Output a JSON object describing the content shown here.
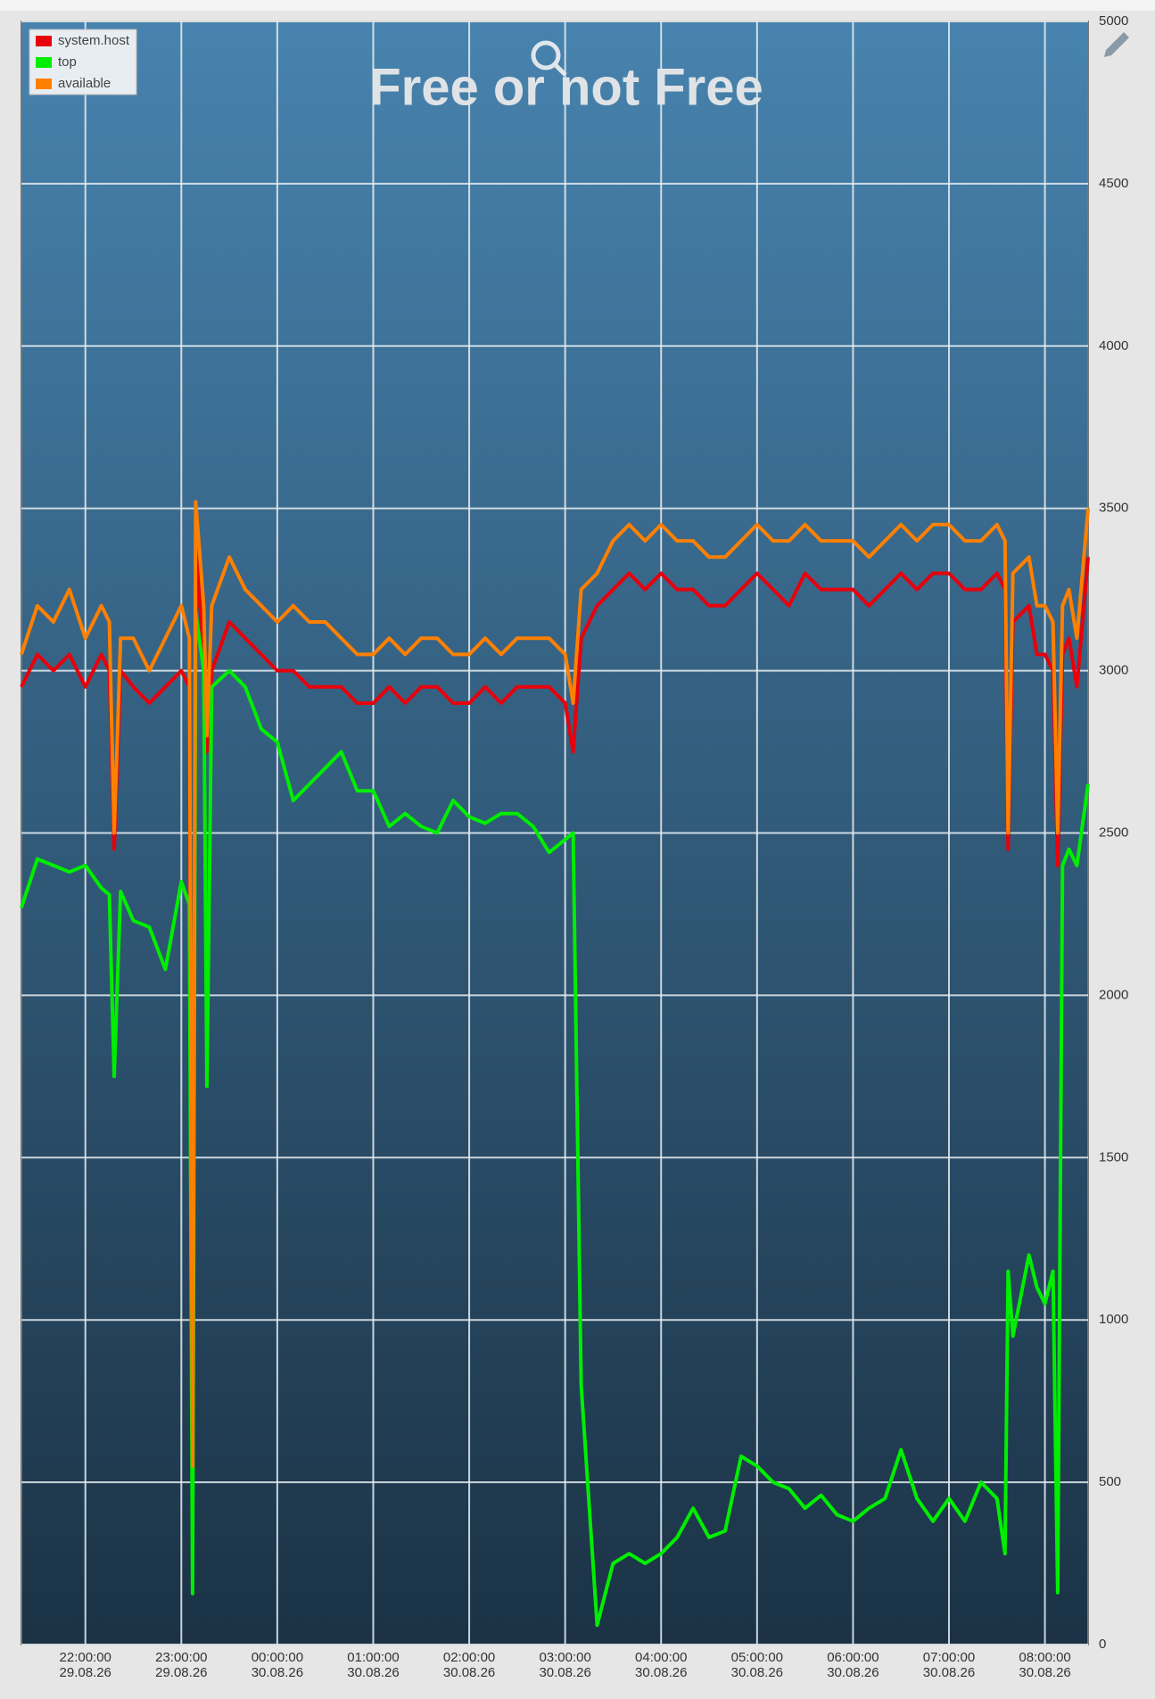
{
  "chart_data": {
    "type": "line",
    "title": "Free or not Free",
    "x": [
      "29.08.26 21:20:00",
      "29.08.26 21:30:00",
      "29.08.26 21:40:00",
      "29.08.26 21:50:00",
      "29.08.26 22:00:00",
      "29.08.26 22:10:00",
      "29.08.26 22:15:00",
      "29.08.26 22:18:00",
      "29.08.26 22:22:00",
      "29.08.26 22:30:00",
      "29.08.26 22:40:00",
      "29.08.26 22:50:00",
      "29.08.26 23:00:00",
      "29.08.26 23:05:00",
      "29.08.26 23:07:00",
      "29.08.26 23:09:00",
      "29.08.26 23:14:00",
      "29.08.26 23:16:00",
      "29.08.26 23:19:00",
      "29.08.26 23:30:00",
      "29.08.26 23:40:00",
      "29.08.26 23:50:00",
      "30.08.26 00:00:00",
      "30.08.26 00:10:00",
      "30.08.26 00:20:00",
      "30.08.26 00:30:00",
      "30.08.26 00:40:00",
      "30.08.26 00:50:00",
      "30.08.26 01:00:00",
      "30.08.26 01:10:00",
      "30.08.26 01:20:00",
      "30.08.26 01:30:00",
      "30.08.26 01:40:00",
      "30.08.26 01:50:00",
      "30.08.26 02:00:00",
      "30.08.26 02:10:00",
      "30.08.26 02:20:00",
      "30.08.26 02:30:00",
      "30.08.26 02:40:00",
      "30.08.26 02:50:00",
      "30.08.26 03:00:00",
      "30.08.26 03:05:00",
      "30.08.26 03:10:00",
      "30.08.26 03:20:00",
      "30.08.26 03:30:00",
      "30.08.26 03:40:00",
      "30.08.26 03:50:00",
      "30.08.26 04:00:00",
      "30.08.26 04:10:00",
      "30.08.26 04:20:00",
      "30.08.26 04:30:00",
      "30.08.26 04:40:00",
      "30.08.26 04:50:00",
      "30.08.26 05:00:00",
      "30.08.26 05:10:00",
      "30.08.26 05:20:00",
      "30.08.26 05:30:00",
      "30.08.26 05:40:00",
      "30.08.26 05:50:00",
      "30.08.26 06:00:00",
      "30.08.26 06:10:00",
      "30.08.26 06:20:00",
      "30.08.26 06:30:00",
      "30.08.26 06:40:00",
      "30.08.26 06:50:00",
      "30.08.26 07:00:00",
      "30.08.26 07:10:00",
      "30.08.26 07:20:00",
      "30.08.26 07:30:00",
      "30.08.26 07:35:00",
      "30.08.26 07:37:00",
      "30.08.26 07:40:00",
      "30.08.26 07:50:00",
      "30.08.26 07:55:00",
      "30.08.26 08:00:00",
      "30.08.26 08:05:00",
      "30.08.26 08:08:00",
      "30.08.26 08:11:00",
      "30.08.26 08:15:00",
      "30.08.26 08:20:00",
      "30.08.26 08:27:00"
    ],
    "series": [
      {
        "name": "system.host",
        "color": "#e8000b",
        "values": [
          2950,
          3050,
          3000,
          3050,
          2950,
          3050,
          3000,
          2450,
          3000,
          2950,
          2900,
          2950,
          3000,
          2950,
          500,
          3380,
          3050,
          2750,
          3000,
          3150,
          3100,
          3050,
          3000,
          3000,
          2950,
          2950,
          2950,
          2900,
          2900,
          2950,
          2900,
          2950,
          2950,
          2900,
          2900,
          2950,
          2900,
          2950,
          2950,
          2950,
          2900,
          2750,
          3100,
          3200,
          3250,
          3300,
          3250,
          3300,
          3250,
          3250,
          3200,
          3200,
          3250,
          3300,
          3250,
          3200,
          3300,
          3250,
          3250,
          3250,
          3200,
          3250,
          3300,
          3250,
          3300,
          3300,
          3250,
          3250,
          3300,
          3250,
          2450,
          3150,
          3200,
          3050,
          3050,
          3000,
          2400,
          3050,
          3100,
          2950,
          3350
        ]
      },
      {
        "name": "top",
        "color": "#00ee00",
        "values": [
          2270,
          2420,
          2400,
          2380,
          2400,
          2330,
          2310,
          1750,
          2320,
          2230,
          2210,
          2080,
          2350,
          2280,
          157,
          3180,
          3000,
          1720,
          2950,
          3000,
          2950,
          2820,
          2780,
          2600,
          2650,
          2700,
          2750,
          2630,
          2630,
          2520,
          2560,
          2520,
          2500,
          2600,
          2550,
          2530,
          2560,
          2560,
          2520,
          2440,
          2480,
          2500,
          800,
          60,
          250,
          280,
          250,
          280,
          330,
          420,
          330,
          350,
          580,
          550,
          500,
          480,
          420,
          460,
          400,
          380,
          420,
          450,
          600,
          450,
          380,
          450,
          380,
          500,
          450,
          280,
          1150,
          950,
          1200,
          1100,
          1050,
          1150,
          160,
          2400,
          2450,
          2400,
          2650
        ]
      },
      {
        "name": "available",
        "color": "#ff8000",
        "values": [
          3050,
          3200,
          3150,
          3250,
          3100,
          3200,
          3150,
          2500,
          3100,
          3100,
          3000,
          3100,
          3200,
          3100,
          550,
          3520,
          3200,
          2800,
          3200,
          3350,
          3250,
          3200,
          3150,
          3200,
          3150,
          3150,
          3100,
          3050,
          3050,
          3100,
          3050,
          3100,
          3100,
          3050,
          3050,
          3100,
          3050,
          3100,
          3100,
          3100,
          3050,
          2900,
          3250,
          3300,
          3400,
          3450,
          3400,
          3450,
          3400,
          3400,
          3350,
          3350,
          3400,
          3450,
          3400,
          3400,
          3450,
          3400,
          3400,
          3400,
          3350,
          3400,
          3450,
          3400,
          3450,
          3450,
          3400,
          3400,
          3450,
          3400,
          2500,
          3300,
          3350,
          3200,
          3200,
          3150,
          2500,
          3200,
          3250,
          3100,
          3500
        ]
      }
    ],
    "xlim": [
      "29.08.26 21:20:00",
      "30.08.26 08:27:00"
    ],
    "xticks": [
      {
        "value": "29.08.26 22:00:00",
        "label": [
          "22:00:00",
          "29.08.26"
        ]
      },
      {
        "value": "29.08.26 23:00:00",
        "label": [
          "23:00:00",
          "29.08.26"
        ]
      },
      {
        "value": "30.08.26 00:00:00",
        "label": [
          "00:00:00",
          "30.08.26"
        ]
      },
      {
        "value": "30.08.26 01:00:00",
        "label": [
          "01:00:00",
          "30.08.26"
        ]
      },
      {
        "value": "30.08.26 02:00:00",
        "label": [
          "02:00:00",
          "30.08.26"
        ]
      },
      {
        "value": "30.08.26 03:00:00",
        "label": [
          "03:00:00",
          "30.08.26"
        ]
      },
      {
        "value": "30.08.26 04:00:00",
        "label": [
          "04:00:00",
          "30.08.26"
        ]
      },
      {
        "value": "30.08.26 05:00:00",
        "label": [
          "05:00:00",
          "30.08.26"
        ]
      },
      {
        "value": "30.08.26 06:00:00",
        "label": [
          "06:00:00",
          "30.08.26"
        ]
      },
      {
        "value": "30.08.26 07:00:00",
        "label": [
          "07:00:00",
          "30.08.26"
        ]
      },
      {
        "value": "30.08.26 08:00:00",
        "label": [
          "08:00:00",
          "30.08.26"
        ]
      }
    ],
    "ylim": [
      0,
      5000
    ],
    "yticks": [
      0,
      500,
      1000,
      1500,
      2000,
      2500,
      3000,
      3500,
      4000,
      4500,
      5000
    ],
    "grid": true,
    "legend": "top-left"
  }
}
